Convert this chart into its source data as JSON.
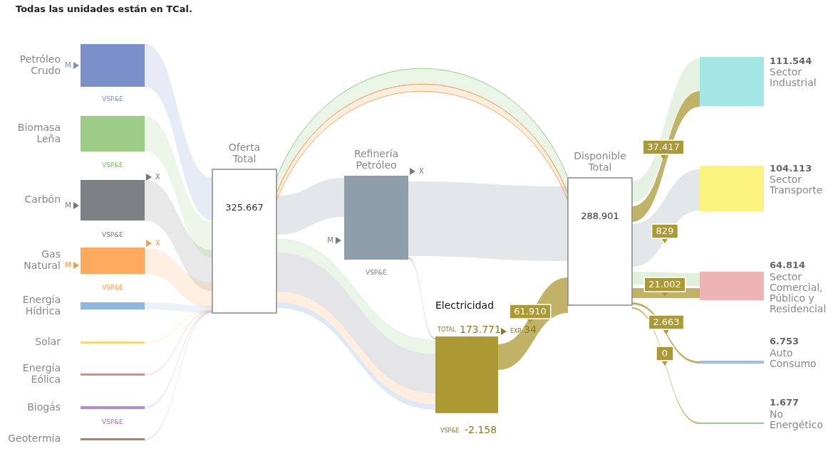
{
  "chart_data": {
    "type": "other",
    "title": "Todas las unidades están en TCal.",
    "categories": [
      "Petróleo Crudo",
      "Biomasa Leña",
      "Carbón",
      "Gas Natural",
      "Energía Hídrica",
      "Solar",
      "Energía Eólica",
      "Biogás",
      "Geotermia",
      "Oferta Total",
      "Refinería Petróleo",
      "Electricidad",
      "Disponible Total",
      "Sector Industrial",
      "Sector Transporte",
      "Sector Comercial, Público y Residencial",
      "Auto Consumo",
      "No Energético"
    ],
    "values": [
      null,
      null,
      null,
      null,
      null,
      null,
      null,
      null,
      null,
      325667,
      null,
      173771,
      288901,
      111544,
      104113,
      64814,
      6753,
      1677
    ],
    "value_labels": [
      null,
      null,
      null,
      null,
      null,
      null,
      null,
      null,
      null,
      "325.667",
      null,
      "173.771",
      "288.901",
      "111.544",
      "104.113",
      "64.814",
      "6.753",
      "1.677"
    ],
    "colors": [
      "#7b8fc9",
      "#9ccc86",
      "#7f7f86",
      "#ffa95e",
      "#8fb8e0",
      "#f5d77a",
      "#f08080",
      "#b58ad6",
      "#a0857a",
      "#ffffff",
      "#8e9eab",
      "#ab9a34",
      "#ffffff",
      "#a4e6e6",
      "#fbf37e",
      "#eeb4b4",
      "#9ec0e0",
      "#9cc79c"
    ],
    "annotations": [
      "M",
      "VSP&E",
      "VSP&E",
      "X",
      "M",
      "VSP&E",
      "X",
      "M",
      "VSP&E",
      "VSP&E",
      "X",
      "M",
      "VSP&E",
      "TOTAL",
      "EXP.",
      "34",
      "VSP&E",
      "-2.158",
      "61.910",
      "37.417",
      "829",
      "21.002",
      "2.663",
      "0"
    ]
  }
}
